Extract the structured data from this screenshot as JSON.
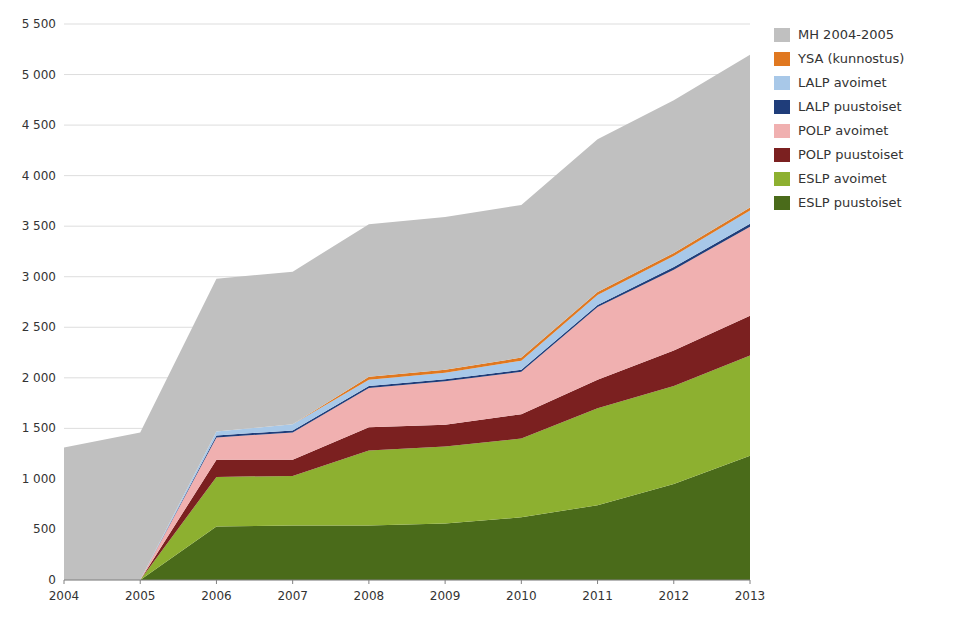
{
  "chart_data": {
    "type": "area",
    "stacked": true,
    "x": [
      2004,
      2005,
      2006,
      2007,
      2008,
      2009,
      2010,
      2011,
      2012,
      2013
    ],
    "series": [
      {
        "name": "ESLP puustoiset",
        "color": "#4a6b1a",
        "values": [
          0,
          0,
          530,
          540,
          540,
          560,
          620,
          740,
          950,
          1230
        ]
      },
      {
        "name": "ESLP avoimet",
        "color": "#8db030",
        "values": [
          0,
          0,
          490,
          490,
          740,
          760,
          780,
          960,
          970,
          990
        ]
      },
      {
        "name": "POLP puustoiset",
        "color": "#7b2020",
        "values": [
          0,
          0,
          170,
          160,
          230,
          215,
          240,
          280,
          350,
          395
        ]
      },
      {
        "name": "POLP avoimet",
        "color": "#f0b0b0",
        "values": [
          0,
          0,
          220,
          270,
          390,
          430,
          420,
          720,
          800,
          880
        ]
      },
      {
        "name": "LALP puustoiset",
        "color": "#1f3d7a",
        "values": [
          0,
          0,
          20,
          20,
          20,
          20,
          20,
          20,
          25,
          30
        ]
      },
      {
        "name": "LALP avoimet",
        "color": "#a8c8e8",
        "values": [
          0,
          0,
          40,
          60,
          60,
          65,
          90,
          100,
          110,
          130
        ]
      },
      {
        "name": "YSA (kunnostus)",
        "color": "#e07820",
        "values": [
          0,
          0,
          0,
          0,
          30,
          30,
          30,
          30,
          30,
          30
        ]
      },
      {
        "name": "MH 2004-2005",
        "color": "#c0c0c0",
        "values": [
          1310,
          1460,
          1510,
          1510,
          1510,
          1510,
          1510,
          1510,
          1510,
          1510
        ]
      }
    ],
    "xlim": [
      2004,
      2013
    ],
    "xticks": [
      2004,
      2005,
      2006,
      2007,
      2008,
      2009,
      2010,
      2011,
      2012,
      2013
    ],
    "ylim": [
      0,
      5500
    ],
    "yticks": [
      0,
      500,
      {
        "value": 1000,
        "label": "1 000"
      },
      {
        "value": 1500,
        "label": "1 500"
      },
      {
        "value": 2000,
        "label": "2 000"
      },
      {
        "value": 2500,
        "label": "2 500"
      },
      {
        "value": 3000,
        "label": "3 000"
      },
      {
        "value": 3500,
        "label": "3 500"
      },
      {
        "value": 4000,
        "label": "4 000"
      },
      {
        "value": 4500,
        "label": "4 500"
      },
      {
        "value": 5000,
        "label": "5 000"
      },
      {
        "value": 5500,
        "label": "5 500"
      }
    ],
    "grid": true,
    "legend": "right"
  }
}
